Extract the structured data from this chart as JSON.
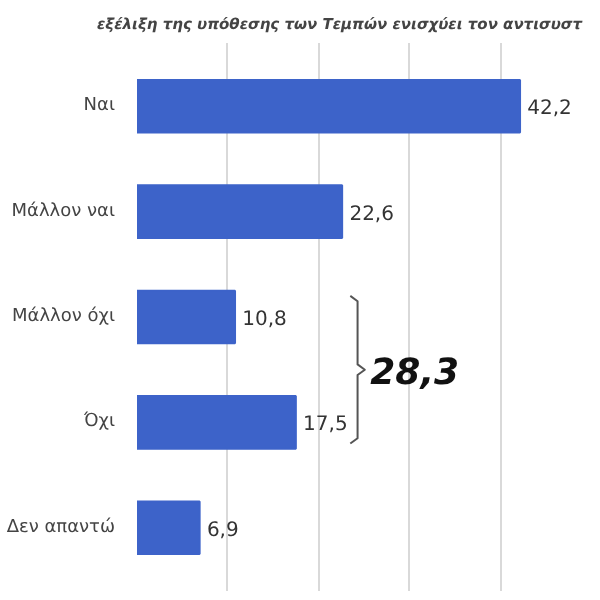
{
  "chart_data": {
    "type": "bar",
    "orientation": "horizontal",
    "title": "εξέλιξη της υπόθεσης των Τεμπών ενισχύει τον αντισυστ",
    "categories": [
      "Ναι",
      "Μάλλον ναι",
      "Μάλλον όχι",
      "Όχι",
      "Δεν απαντώ"
    ],
    "values": [
      42.2,
      22.6,
      10.8,
      17.5,
      6.9
    ],
    "value_labels": [
      "42,2",
      "22,6",
      "10,8",
      "17,5",
      "6,9"
    ],
    "color": "#3d63c9",
    "xticks": [
      {
        "value": 10,
        "label": null
      },
      {
        "value": 20,
        "label": null
      },
      {
        "value": 30,
        "label": null
      },
      {
        "value": 40,
        "label": null
      }
    ],
    "grid": "x",
    "tick_labels": "y",
    "annotations": [
      "28,3"
    ]
  }
}
